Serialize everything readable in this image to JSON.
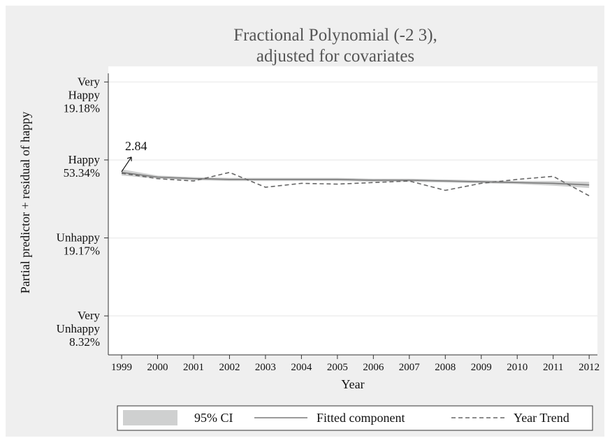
{
  "chart_data": {
    "type": "line",
    "title": [
      "Fractional Polynomial (-2 3),",
      "adjusted for covariates"
    ],
    "y_axis_label": "Partial predictor + residual of happy",
    "x_axis_label": "Year",
    "x": [
      1999,
      2000,
      2001,
      2002,
      2003,
      2004,
      2005,
      2006,
      2007,
      2008,
      2009,
      2010,
      2011,
      2012
    ],
    "xlim": [
      1998.63,
      2012.23
    ],
    "ylim": [
      0.5,
      4.2
    ],
    "yticks": [
      {
        "value": 1,
        "label": "Very\nUnhappy\n8.32%"
      },
      {
        "value": 2,
        "label": "Unhappy\n19.17%"
      },
      {
        "value": 3,
        "label": "Happy\n53.34%"
      },
      {
        "value": 4,
        "label": "Very\nHappy\n19.18%"
      }
    ],
    "grid": true,
    "series": [
      {
        "name": "95% CI",
        "color": "#cfd0d0",
        "lower": [
          2.8,
          2.76,
          2.74,
          2.73,
          2.73,
          2.73,
          2.73,
          2.72,
          2.72,
          2.71,
          2.7,
          2.69,
          2.67,
          2.64
        ],
        "upper": [
          2.88,
          2.8,
          2.78,
          2.77,
          2.77,
          2.77,
          2.77,
          2.76,
          2.76,
          2.75,
          2.74,
          2.73,
          2.73,
          2.72
        ]
      },
      {
        "name": "Fitted component",
        "color": "#7a7a7a",
        "dash": false,
        "values": [
          2.84,
          2.78,
          2.76,
          2.75,
          2.75,
          2.75,
          2.75,
          2.74,
          2.74,
          2.73,
          2.72,
          2.71,
          2.7,
          2.68
        ]
      },
      {
        "name": "Year Trend",
        "color": "#666666",
        "dash": true,
        "values": [
          2.83,
          2.76,
          2.73,
          2.84,
          2.65,
          2.7,
          2.69,
          2.71,
          2.73,
          2.61,
          2.7,
          2.75,
          2.79,
          2.54
        ]
      }
    ],
    "annotation": {
      "text": "2.84",
      "x": 1999,
      "y": 2.84
    }
  }
}
